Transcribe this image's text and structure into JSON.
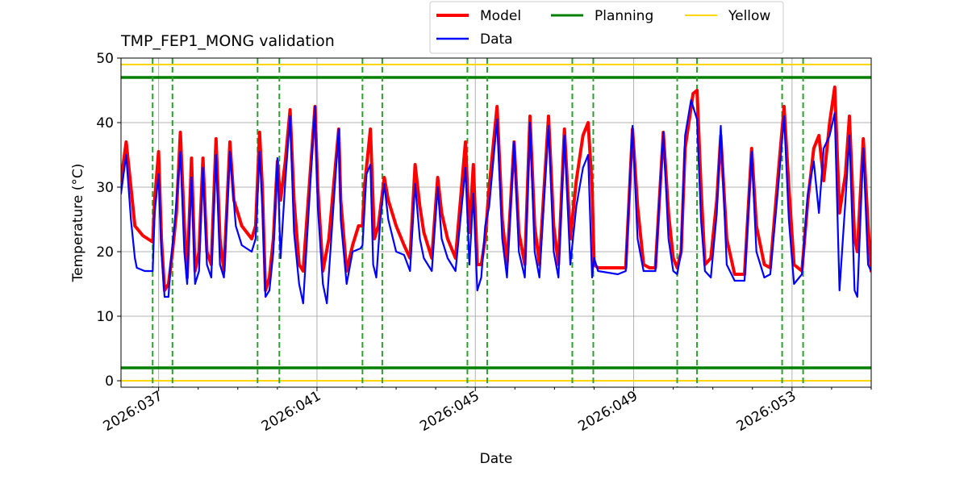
{
  "chart_data": {
    "type": "line",
    "title": "TMP_FEP1_MONG validation",
    "xlabel": "Date",
    "ylabel": "Temperature ($^\\circ$C)",
    "ylabel_display": "Temperature (°C)",
    "xlim": [
      36.05,
      55.0
    ],
    "ylim": [
      -1,
      50
    ],
    "grid": true,
    "legend_position": "top-center",
    "x_ticks": [
      {
        "value": 37,
        "label": "2026:037"
      },
      {
        "value": 41,
        "label": "2026:041"
      },
      {
        "value": 45,
        "label": "2026:045"
      },
      {
        "value": 49,
        "label": "2026:049"
      },
      {
        "value": 53,
        "label": "2026:053"
      }
    ],
    "y_ticks": [
      0,
      10,
      20,
      30,
      40,
      50
    ],
    "legend": [
      {
        "label": "Model",
        "color": "#ff0000"
      },
      {
        "label": "Planning",
        "color": "#008000"
      },
      {
        "label": "Yellow",
        "color": "#ffd700"
      },
      {
        "label": "Data",
        "color": "#0000ff"
      }
    ],
    "limits": [
      {
        "name": "Planning",
        "value": 47,
        "color": "#008000"
      },
      {
        "name": "Planning",
        "value": 2,
        "color": "#008000"
      },
      {
        "name": "Yellow",
        "value": 49,
        "color": "#ffd700"
      },
      {
        "name": "Yellow",
        "value": 0,
        "color": "#ffd700"
      }
    ],
    "vertical_dashed_lines": {
      "color": "#2ca02c",
      "x": [
        36.85,
        37.35,
        39.5,
        40.05,
        42.15,
        42.65,
        44.8,
        45.3,
        47.45,
        47.98,
        50.1,
        50.6,
        52.75,
        53.28
      ]
    },
    "series": [
      {
        "name": "Model",
        "color": "#ff0000",
        "points": [
          [
            36.05,
            31
          ],
          [
            36.18,
            37
          ],
          [
            36.3,
            30
          ],
          [
            36.4,
            24
          ],
          [
            36.6,
            22.5
          ],
          [
            36.85,
            21.5
          ],
          [
            36.9,
            28
          ],
          [
            37.0,
            35.5
          ],
          [
            37.07,
            22
          ],
          [
            37.15,
            14
          ],
          [
            37.25,
            15
          ],
          [
            37.35,
            20
          ],
          [
            37.45,
            26
          ],
          [
            37.55,
            38.5
          ],
          [
            37.65,
            24
          ],
          [
            37.72,
            16
          ],
          [
            37.83,
            34.5
          ],
          [
            37.92,
            17
          ],
          [
            38.02,
            20
          ],
          [
            38.12,
            34.5
          ],
          [
            38.22,
            20
          ],
          [
            38.33,
            18
          ],
          [
            38.45,
            37.5
          ],
          [
            38.55,
            22
          ],
          [
            38.65,
            17
          ],
          [
            38.8,
            37
          ],
          [
            38.9,
            28
          ],
          [
            39.1,
            24
          ],
          [
            39.35,
            22
          ],
          [
            39.45,
            24
          ],
          [
            39.55,
            38.5
          ],
          [
            39.62,
            30
          ],
          [
            39.7,
            14
          ],
          [
            39.8,
            16
          ],
          [
            39.9,
            22
          ],
          [
            40.0,
            34
          ],
          [
            40.08,
            28
          ],
          [
            40.2,
            34
          ],
          [
            40.32,
            42
          ],
          [
            40.42,
            28
          ],
          [
            40.55,
            18
          ],
          [
            40.65,
            17
          ],
          [
            40.95,
            42.5
          ],
          [
            41.02,
            30
          ],
          [
            41.15,
            17
          ],
          [
            41.3,
            22
          ],
          [
            41.55,
            39
          ],
          [
            41.6,
            28
          ],
          [
            41.75,
            17
          ],
          [
            41.9,
            21
          ],
          [
            42.05,
            24
          ],
          [
            42.15,
            24
          ],
          [
            42.2,
            30
          ],
          [
            42.35,
            39
          ],
          [
            42.45,
            22
          ],
          [
            42.55,
            24
          ],
          [
            42.7,
            31.5
          ],
          [
            42.8,
            28
          ],
          [
            43.0,
            24
          ],
          [
            43.2,
            21
          ],
          [
            43.35,
            19
          ],
          [
            43.48,
            33.5
          ],
          [
            43.6,
            27
          ],
          [
            43.7,
            23
          ],
          [
            43.9,
            19
          ],
          [
            44.05,
            31.5
          ],
          [
            44.15,
            26
          ],
          [
            44.3,
            22
          ],
          [
            44.5,
            19
          ],
          [
            44.75,
            37
          ],
          [
            44.85,
            23
          ],
          [
            44.95,
            33.5
          ],
          [
            45.05,
            18
          ],
          [
            45.15,
            18
          ],
          [
            45.25,
            22
          ],
          [
            45.35,
            30
          ],
          [
            45.55,
            42.5
          ],
          [
            45.68,
            25
          ],
          [
            45.8,
            18
          ],
          [
            45.98,
            37
          ],
          [
            46.1,
            23
          ],
          [
            46.25,
            18
          ],
          [
            46.38,
            41
          ],
          [
            46.5,
            24
          ],
          [
            46.62,
            18
          ],
          [
            46.85,
            41
          ],
          [
            46.98,
            24
          ],
          [
            47.1,
            18
          ],
          [
            47.25,
            39
          ],
          [
            47.4,
            22
          ],
          [
            47.55,
            31
          ],
          [
            47.72,
            38
          ],
          [
            47.85,
            40
          ],
          [
            47.95,
            30
          ],
          [
            48.0,
            18
          ],
          [
            48.1,
            17.5
          ],
          [
            48.6,
            17.5
          ],
          [
            48.8,
            17.5
          ],
          [
            48.97,
            39
          ],
          [
            49.1,
            27
          ],
          [
            49.25,
            18
          ],
          [
            49.4,
            17.5
          ],
          [
            49.55,
            17.5
          ],
          [
            49.75,
            38.5
          ],
          [
            49.88,
            26
          ],
          [
            50.0,
            19
          ],
          [
            50.1,
            17.5
          ],
          [
            50.2,
            20
          ],
          [
            50.3,
            36
          ],
          [
            50.5,
            44.5
          ],
          [
            50.6,
            45
          ],
          [
            50.7,
            30
          ],
          [
            50.8,
            18
          ],
          [
            50.95,
            19
          ],
          [
            51.1,
            28
          ],
          [
            51.2,
            38
          ],
          [
            51.35,
            22
          ],
          [
            51.55,
            16.5
          ],
          [
            51.8,
            16.5
          ],
          [
            51.98,
            36
          ],
          [
            52.1,
            24
          ],
          [
            52.3,
            18
          ],
          [
            52.45,
            17.5
          ],
          [
            52.65,
            32
          ],
          [
            52.8,
            42.5
          ],
          [
            52.92,
            30
          ],
          [
            53.05,
            18
          ],
          [
            53.25,
            17
          ],
          [
            53.4,
            28
          ],
          [
            53.55,
            36
          ],
          [
            53.68,
            38
          ],
          [
            53.8,
            31
          ],
          [
            53.95,
            40
          ],
          [
            54.08,
            45.5
          ],
          [
            54.2,
            26
          ],
          [
            54.35,
            32
          ],
          [
            54.45,
            41
          ],
          [
            54.58,
            22
          ],
          [
            54.65,
            20
          ],
          [
            54.8,
            37.5
          ],
          [
            54.92,
            24
          ],
          [
            55.0,
            17
          ]
        ]
      },
      {
        "name": "Data",
        "color": "#0000ff",
        "points": [
          [
            36.05,
            29
          ],
          [
            36.18,
            35
          ],
          [
            36.3,
            25
          ],
          [
            36.4,
            19
          ],
          [
            36.45,
            17.5
          ],
          [
            36.65,
            17
          ],
          [
            36.85,
            17
          ],
          [
            36.9,
            26
          ],
          [
            37.0,
            32
          ],
          [
            37.07,
            20
          ],
          [
            37.15,
            13
          ],
          [
            37.25,
            13
          ],
          [
            37.3,
            18
          ],
          [
            37.4,
            24
          ],
          [
            37.55,
            35.5
          ],
          [
            37.65,
            20
          ],
          [
            37.72,
            15
          ],
          [
            37.83,
            31.5
          ],
          [
            37.92,
            15
          ],
          [
            38.02,
            17
          ],
          [
            38.12,
            33
          ],
          [
            38.22,
            18
          ],
          [
            38.33,
            16
          ],
          [
            38.45,
            35
          ],
          [
            38.55,
            18
          ],
          [
            38.65,
            16
          ],
          [
            38.8,
            35.5
          ],
          [
            38.95,
            24
          ],
          [
            39.1,
            21
          ],
          [
            39.35,
            20
          ],
          [
            39.45,
            22
          ],
          [
            39.55,
            35.5
          ],
          [
            39.62,
            27
          ],
          [
            39.7,
            13
          ],
          [
            39.8,
            14
          ],
          [
            39.9,
            20
          ],
          [
            40.0,
            34.5
          ],
          [
            40.08,
            19
          ],
          [
            40.2,
            31
          ],
          [
            40.32,
            41
          ],
          [
            40.42,
            23
          ],
          [
            40.55,
            15
          ],
          [
            40.65,
            12
          ],
          [
            40.95,
            42.5
          ],
          [
            41.02,
            27
          ],
          [
            41.15,
            15
          ],
          [
            41.25,
            12
          ],
          [
            41.55,
            39
          ],
          [
            41.6,
            25
          ],
          [
            41.75,
            15
          ],
          [
            41.9,
            20
          ],
          [
            42.1,
            20.5
          ],
          [
            42.15,
            21
          ],
          [
            42.25,
            32
          ],
          [
            42.35,
            33.5
          ],
          [
            42.42,
            18
          ],
          [
            42.5,
            16
          ],
          [
            42.6,
            25
          ],
          [
            42.7,
            30.5
          ],
          [
            42.8,
            25
          ],
          [
            43.0,
            20
          ],
          [
            43.2,
            19.5
          ],
          [
            43.35,
            17
          ],
          [
            43.48,
            30.5
          ],
          [
            43.6,
            22
          ],
          [
            43.7,
            19
          ],
          [
            43.9,
            17
          ],
          [
            44.05,
            30
          ],
          [
            44.15,
            22
          ],
          [
            44.3,
            19
          ],
          [
            44.5,
            17
          ],
          [
            44.75,
            33
          ],
          [
            44.85,
            18
          ],
          [
            44.95,
            29
          ],
          [
            45.05,
            14
          ],
          [
            45.15,
            16
          ],
          [
            45.25,
            24
          ],
          [
            45.35,
            27
          ],
          [
            45.55,
            40.5
          ],
          [
            45.68,
            22
          ],
          [
            45.8,
            16
          ],
          [
            45.98,
            37
          ],
          [
            46.1,
            20
          ],
          [
            46.25,
            16
          ],
          [
            46.38,
            40
          ],
          [
            46.5,
            20
          ],
          [
            46.62,
            16
          ],
          [
            46.85,
            39.5
          ],
          [
            46.98,
            20
          ],
          [
            47.1,
            16
          ],
          [
            47.25,
            38
          ],
          [
            47.4,
            18
          ],
          [
            47.55,
            27
          ],
          [
            47.72,
            33
          ],
          [
            47.85,
            35
          ],
          [
            47.95,
            16
          ],
          [
            48.0,
            19
          ],
          [
            48.1,
            17
          ],
          [
            48.6,
            16.5
          ],
          [
            48.8,
            17
          ],
          [
            48.97,
            39.5
          ],
          [
            49.1,
            22
          ],
          [
            49.25,
            17
          ],
          [
            49.4,
            17
          ],
          [
            49.55,
            17
          ],
          [
            49.75,
            38.5
          ],
          [
            49.88,
            22
          ],
          [
            50.0,
            17
          ],
          [
            50.1,
            16.5
          ],
          [
            50.2,
            20
          ],
          [
            50.3,
            38
          ],
          [
            50.45,
            43.5
          ],
          [
            50.6,
            40.5
          ],
          [
            50.7,
            25
          ],
          [
            50.8,
            17
          ],
          [
            50.95,
            16
          ],
          [
            51.1,
            26
          ],
          [
            51.2,
            39.5
          ],
          [
            51.35,
            18
          ],
          [
            51.55,
            15.5
          ],
          [
            51.8,
            15.5
          ],
          [
            51.98,
            35.5
          ],
          [
            52.1,
            20
          ],
          [
            52.3,
            16
          ],
          [
            52.45,
            16.5
          ],
          [
            52.65,
            30
          ],
          [
            52.8,
            41
          ],
          [
            52.92,
            25
          ],
          [
            53.05,
            15
          ],
          [
            53.25,
            16.5
          ],
          [
            53.4,
            29
          ],
          [
            53.55,
            34
          ],
          [
            53.68,
            26
          ],
          [
            53.8,
            36
          ],
          [
            53.95,
            38
          ],
          [
            54.08,
            41.5
          ],
          [
            54.2,
            14
          ],
          [
            54.35,
            28
          ],
          [
            54.45,
            38
          ],
          [
            54.58,
            14
          ],
          [
            54.65,
            13
          ],
          [
            54.8,
            36
          ],
          [
            54.92,
            18
          ],
          [
            55.0,
            17
          ]
        ]
      }
    ]
  }
}
